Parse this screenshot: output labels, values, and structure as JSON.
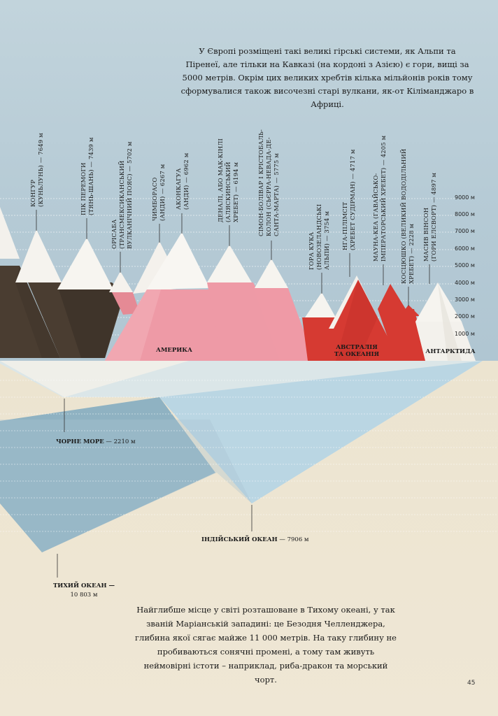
{
  "intro_text": "У Європі розміщені такі великі гірські системи, як Альпи та Піренеї, але тільки на Кавказі (на кордоні з Азією) є гори, вищі за 5000 метрів. Окрім цих великих хребтів кілька мільйонів років тому сформувалися також височезні старі вулкани, як-от Кіліманджаро в Африці.",
  "outro_text": "Найглибше місце у світі розташоване в Тихому океані, у так званій Маріанській западині: це Безодня Челленджера, глибина якої сягає майже 11 000 метрів. На таку глибину не пробиваються сонячні промені, а тому там живуть неймовірні істоти – наприклад, риба-дракон та морський чорт.",
  "page_number": "45",
  "scale_labels": [
    "9000 м",
    "8000 м",
    "7000 м",
    "6000 м",
    "5000 м",
    "4000 м",
    "3000 м",
    "2000 м",
    "1000 м"
  ],
  "continents": {
    "america": "АМЕРИКА",
    "australia_1": "АВСТРАЛІЯ",
    "australia_2": "ТА ОКЕАНІЯ",
    "antarctica": "АНТАРКТИДА"
  },
  "peaks": [
    {
      "line1": "КОНГУР",
      "line2": "(КУНЬЛУНЬ) — 7649 м",
      "line3": "",
      "height_m": 7649
    },
    {
      "line1": "ПІК ПЕРЕМОГИ",
      "line2": "(ТЯНЬ-ШАНЬ) — 7439 м",
      "line3": "",
      "height_m": 7439
    },
    {
      "line1": "ОРІСАБА",
      "line2": "(ТРАНСМЕКСИКАНСЬКИЙ",
      "line3": "ВУЛКАНІЧНИЙ ПОЯС) — 5702 м",
      "height_m": 5702
    },
    {
      "line1": "ЧИМБОРАСО",
      "line2": "(АНДИ) — 6267 м",
      "line3": "",
      "height_m": 6267
    },
    {
      "line1": "АКОНКАГУА",
      "line2": "(АНДИ) — 6962 м",
      "line3": "",
      "height_m": 6962
    },
    {
      "line1": "ДЕНАЛІ, АБО МАК-КІНЛІ",
      "line2": "(АЛЯСКИНСЬКИЙ",
      "line3": "ХРЕБЕТ) — 6194 м",
      "height_m": 6194
    },
    {
      "line1": "СІМОН-БОЛІВАР І КРІСТОБАЛЬ-",
      "line2": "КОЛОН (СЬЄРРА-НЕВАДА-ДЕ-",
      "line3": "САНТА-МАРТА) — 5775 м",
      "height_m": 5775
    },
    {
      "line1": "ГОРА КУКА",
      "line2": "(НОВОЗЕЛАНДСЬКІ",
      "line3": "АЛЬПИ) — 3754 м",
      "height_m": 3754
    },
    {
      "line1": "НГА-ПІЛІМСІТ",
      "line2": "(ХРЕБЕТ СУДІРМАН) — 4717 м",
      "line3": "",
      "height_m": 4717
    },
    {
      "line1": "МАУНА-КЕА (ГАВАЙСЬКО-",
      "line2": "ІМПЕРАТОРСЬКИЙ ХРЕБЕТ) — 4205 м",
      "line3": "",
      "height_m": 4205
    },
    {
      "line1": "КОСЦЮШКО (ВЕЛИКИЙ ВОДОДІЛЬНИЙ",
      "line2": "ХРЕБЕТ) — 2228 м",
      "line3": "",
      "height_m": 2228
    },
    {
      "line1": "МАСИВ ВІНСОН",
      "line2": "(ГОРИ ЕЛСВОРТ) — 4897 м",
      "line3": "",
      "height_m": 4897
    }
  ],
  "depths": [
    {
      "name": "ЧОРНЕ МОРЕ",
      "value": "— 2210 м",
      "depth_m": 2210
    },
    {
      "name": "ІНДІЙСЬКИЙ ОКЕАН",
      "value": "— 7906 м",
      "depth_m": 7906
    },
    {
      "name": "ТИХИЙ ОКЕАН —",
      "value": "10 803 м",
      "depth_m": 10803
    }
  ],
  "colors": {
    "asia_brown": "#4a3d31",
    "america_pink": "#ee9aa6",
    "australia_red": "#d63a32",
    "snow": "#f6f4ef",
    "sea_light": "#c2dbe6",
    "sea_mid": "#9ec1cf",
    "sky": "#b8ccd6",
    "paper": "#ede5d2"
  }
}
